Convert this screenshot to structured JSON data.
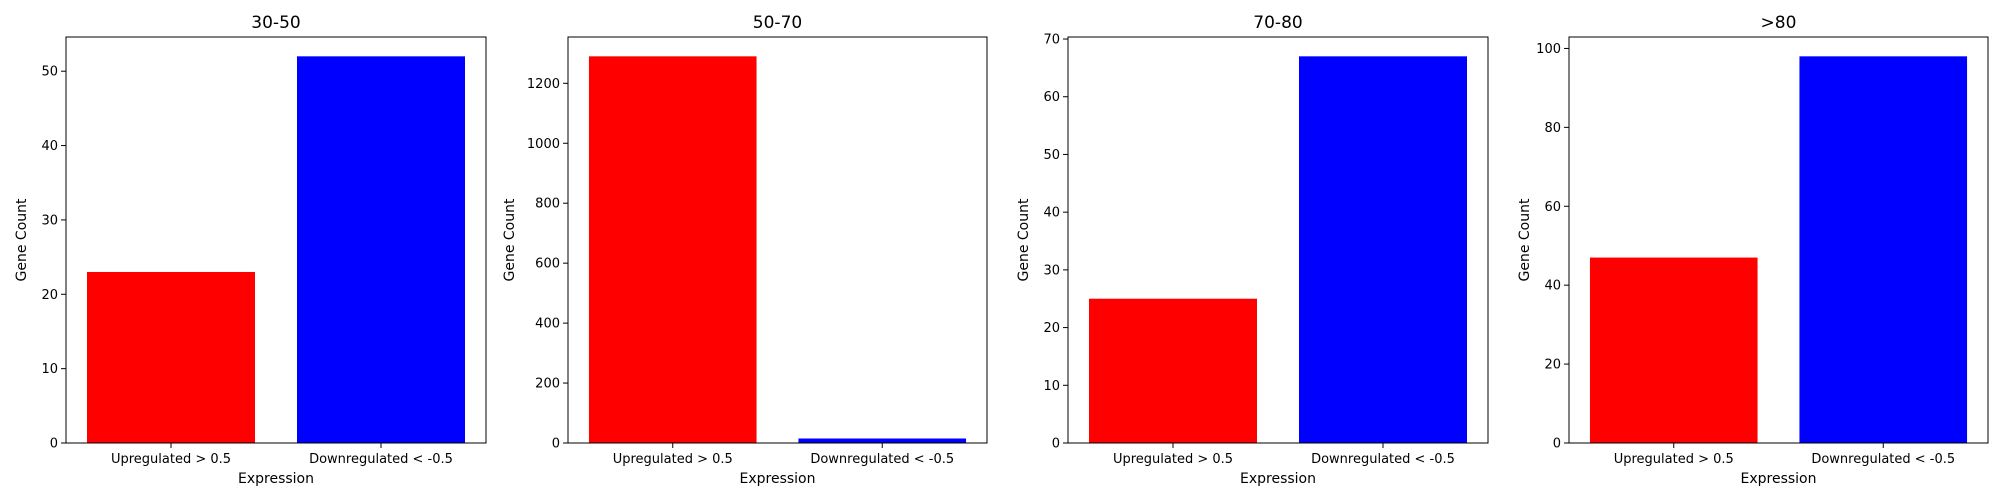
{
  "chart_data": [
    {
      "type": "bar",
      "title": "30-50",
      "xlabel": "Expression",
      "ylabel": "Gene Count",
      "categories": [
        "Upregulated > 0.5",
        "Downregulated < -0.5"
      ],
      "values": [
        23,
        52
      ],
      "colors": [
        "#ff0000",
        "#0000ff"
      ],
      "ylim": [
        0,
        54.6
      ],
      "yticks": [
        0,
        10,
        20,
        30,
        40,
        50
      ],
      "grid": false
    },
    {
      "type": "bar",
      "title": "50-70",
      "xlabel": "Expression",
      "ylabel": "Gene Count",
      "categories": [
        "Upregulated > 0.5",
        "Downregulated < -0.5"
      ],
      "values": [
        1290,
        15
      ],
      "colors": [
        "#ff0000",
        "#0000ff"
      ],
      "ylim": [
        0,
        1354.5
      ],
      "yticks": [
        0,
        200,
        400,
        600,
        800,
        1000,
        1200
      ],
      "grid": false
    },
    {
      "type": "bar",
      "title": "70-80",
      "xlabel": "Expression",
      "ylabel": "Gene Count",
      "categories": [
        "Upregulated > 0.5",
        "Downregulated < -0.5"
      ],
      "values": [
        25,
        67
      ],
      "colors": [
        "#ff0000",
        "#0000ff"
      ],
      "ylim": [
        0,
        70.35
      ],
      "yticks": [
        0,
        10,
        20,
        30,
        40,
        50,
        60,
        70
      ],
      "grid": false
    },
    {
      "type": "bar",
      "title": ">80",
      "xlabel": "Expression",
      "ylabel": "Gene Count",
      "categories": [
        "Upregulated > 0.5",
        "Downregulated < -0.5"
      ],
      "values": [
        47,
        98
      ],
      "colors": [
        "#ff0000",
        "#0000ff"
      ],
      "ylim": [
        0,
        102.9
      ],
      "yticks": [
        0,
        20,
        40,
        60,
        80,
        100
      ],
      "grid": false
    }
  ]
}
